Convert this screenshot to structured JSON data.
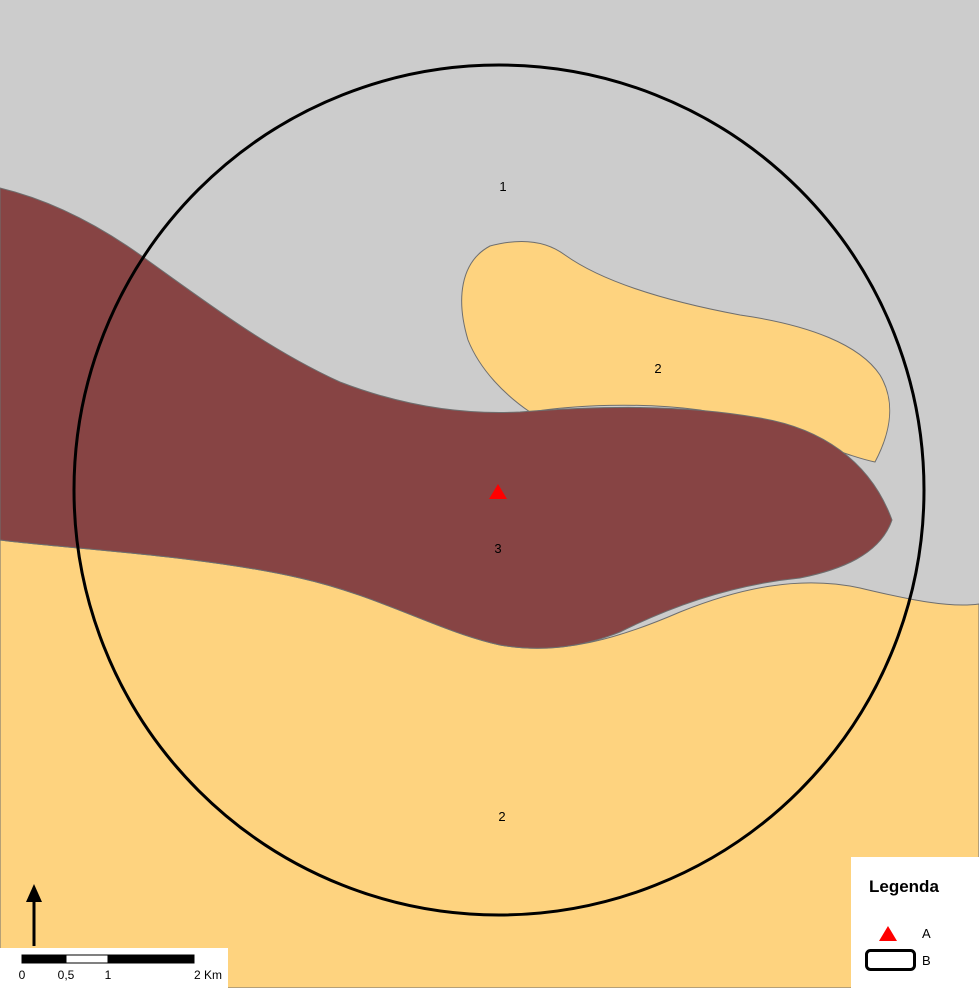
{
  "map": {
    "zones": [
      {
        "label": "1",
        "class_id": 1,
        "color": "#cccccc"
      },
      {
        "label": "2",
        "class_id": 2,
        "color": "#fed37f"
      },
      {
        "label": "2",
        "class_id": 2,
        "color": "#fed37f"
      },
      {
        "label": "3",
        "class_id": 3,
        "color": "#874444"
      }
    ],
    "buffer_circle_color": "#000000",
    "point_symbol": {
      "icon": "red-triangle-icon",
      "color": "#ff0000"
    }
  },
  "north_arrow": {
    "icon": "north-arrow-icon"
  },
  "scale_bar": {
    "ticks": [
      "0",
      "0,5",
      "1",
      "2 Km"
    ]
  },
  "legend": {
    "title": "Legenda",
    "items": [
      {
        "label": "A",
        "icon": "red-triangle-icon",
        "color": "#ff0000"
      },
      {
        "label": "B",
        "icon": "rounded-rectangle-icon",
        "color": "#000000"
      }
    ]
  }
}
